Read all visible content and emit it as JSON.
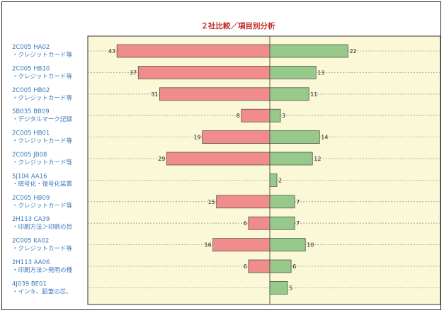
{
  "chart_data": {
    "type": "bar",
    "title": "２社比較／項目別分析",
    "categories": [
      {
        "code": "2C005 HA02",
        "desc": "・クレジットカード等"
      },
      {
        "code": "2C005 HB10",
        "desc": "・クレジットカード等"
      },
      {
        "code": "2C005 HB02",
        "desc": "・クレジットカード等"
      },
      {
        "code": "5B035 BB09",
        "desc": "・デジタルマーク記録"
      },
      {
        "code": "2C005 HB01",
        "desc": "・クレジットカード等"
      },
      {
        "code": "2C005 JB08",
        "desc": "・クレジットカード等"
      },
      {
        "code": "5J104 AA16",
        "desc": "・暗号化・復号化装置"
      },
      {
        "code": "2C005 HB09",
        "desc": "・クレジットカード等"
      },
      {
        "code": "2H113 CA39",
        "desc": "・印刷方法＞印刷の目"
      },
      {
        "code": "2C005 KA02",
        "desc": "・クレジットカード等"
      },
      {
        "code": "2H113 AA06",
        "desc": "・印刷方法＞発明の種"
      },
      {
        "code": "4J039 BE01",
        "desc": "・インキ、鉛筆の芯、"
      }
    ],
    "series": [
      {
        "values": [
          43,
          37,
          31,
          8,
          19,
          29,
          0,
          15,
          6,
          16,
          6,
          0
        ],
        "color": "#f08c8c",
        "direction": "left"
      },
      {
        "values": [
          22,
          13,
          11,
          3,
          14,
          12,
          2,
          7,
          7,
          10,
          6,
          5
        ],
        "color": "#96c98a",
        "direction": "right"
      }
    ],
    "xlim": [
      -50,
      50
    ],
    "grid": "dashed-horizontal",
    "plot_background": "#fbf8d8"
  }
}
